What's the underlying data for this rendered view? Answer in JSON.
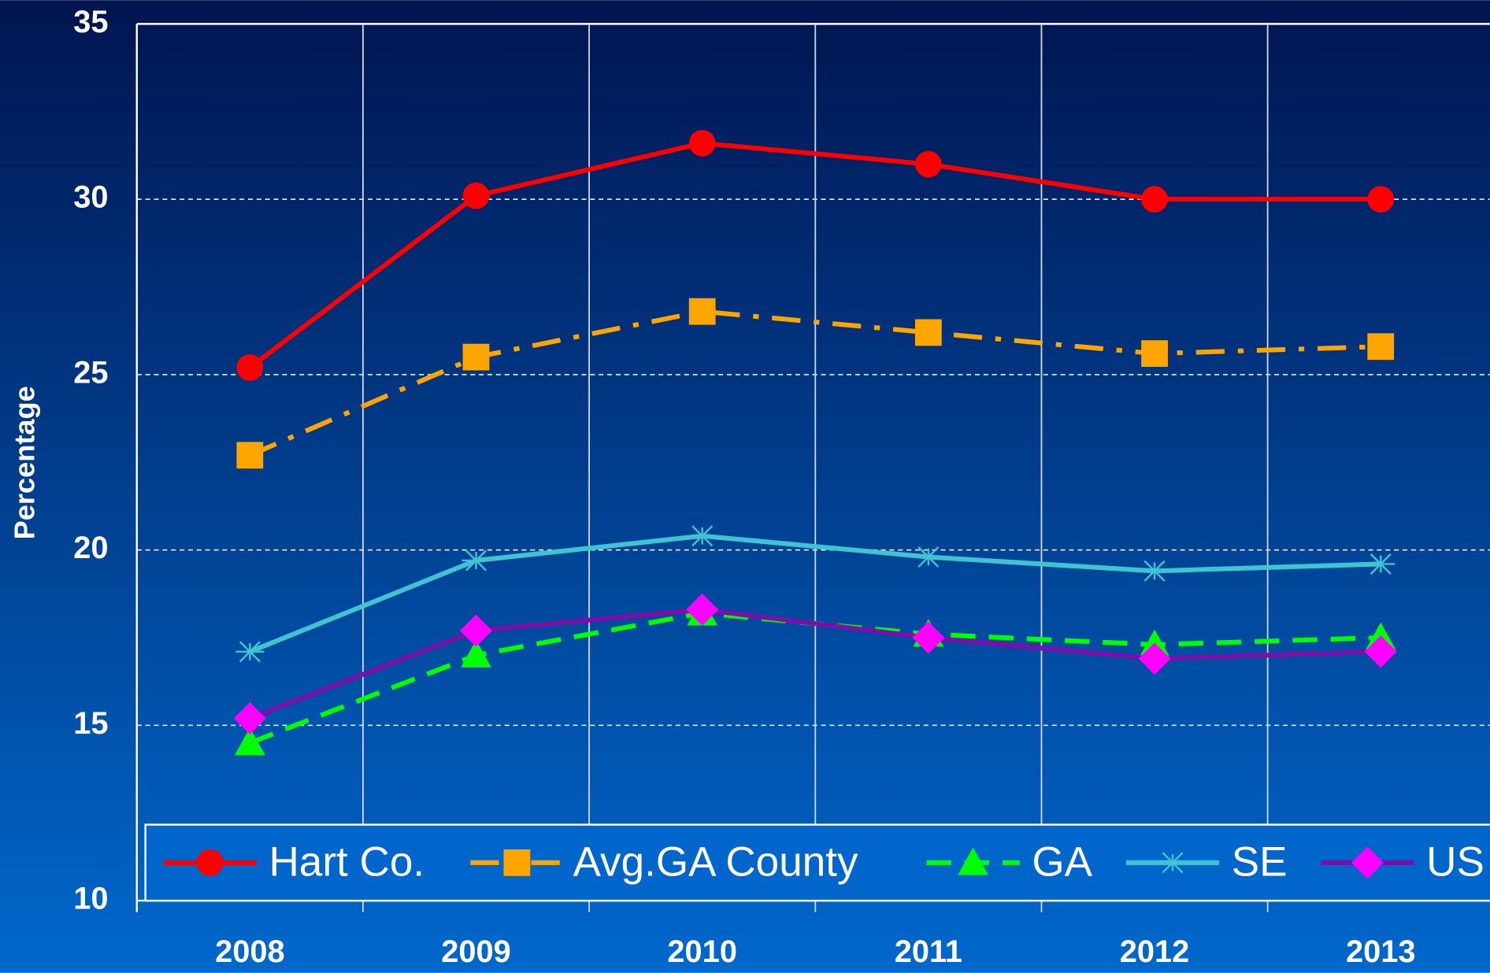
{
  "chart_data": {
    "type": "line",
    "ylabel": "Percentage",
    "categories": [
      "2008",
      "2009",
      "2010",
      "2011",
      "2012",
      "2013"
    ],
    "ylim": [
      10,
      35
    ],
    "yticks": [
      10,
      15,
      20,
      25,
      30,
      35
    ],
    "grid": true,
    "legend": "bottom",
    "series": [
      {
        "name": "Hart Co.",
        "color": "#ff0000",
        "marker": "circle",
        "marker_color": "#ff0000",
        "dash": "solid",
        "values": [
          25.2,
          30.1,
          31.6,
          31.0,
          30.0,
          30.0
        ]
      },
      {
        "name": "Avg.GA County",
        "color": "#ffa500",
        "marker": "square",
        "marker_color": "#ffa500",
        "dash": "dashdot",
        "values": [
          22.7,
          25.5,
          26.8,
          26.2,
          25.6,
          25.8
        ]
      },
      {
        "name": "GA",
        "color": "#00ff00",
        "marker": "triangle",
        "marker_color": "#00ff00",
        "dash": "dashed",
        "values": [
          14.5,
          17.0,
          18.2,
          17.6,
          17.3,
          17.5
        ]
      },
      {
        "name": "SE",
        "color": "#40c4d4",
        "marker": "asterisk",
        "marker_color": "#40c4d4",
        "dash": "solid",
        "values": [
          17.1,
          19.7,
          20.4,
          19.8,
          19.4,
          19.6
        ]
      },
      {
        "name": "US",
        "color": "#7a10a8",
        "marker": "diamond",
        "marker_color": "#ff00ff",
        "dash": "solid",
        "values": [
          15.2,
          17.7,
          18.3,
          17.5,
          16.9,
          17.1
        ]
      }
    ]
  }
}
